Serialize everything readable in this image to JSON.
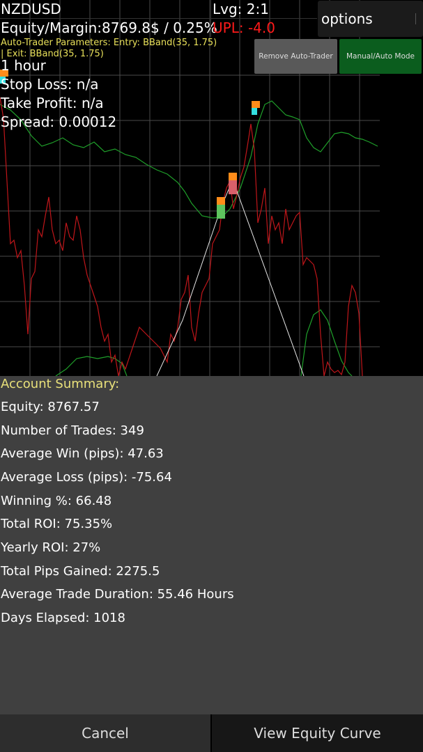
{
  "header": {
    "symbol": "NZDUSD",
    "leverage": "Lvg: 2:1",
    "equity_margin": "Equity/Margin:8769.8$ / 0.25%",
    "upl": "UPL: -4.0",
    "options_label": "options"
  },
  "auto_trader": {
    "params_line1": "Auto-Trader Parameters: Entry: BBand(35, 1.75)",
    "params_line2": "| Exit: BBand(35, 1.75)",
    "remove_label": "Remove Auto-Trader",
    "mode_label": "Manual/Auto Mode"
  },
  "trade_info": {
    "timeframe": "1 hour",
    "stop_loss": "Stop Loss: n/a",
    "take_profit": "Take Profit: n/a",
    "spread": "Spread: 0.00012"
  },
  "colors": {
    "price_line": "#c0161a",
    "band_line": "#1fa02a",
    "trade_line": "#e8e8e8",
    "grid": "#4a4a4a",
    "upl": "#ff1a1a",
    "params_text": "#e8e05a",
    "marker_orange": "#ff8c1a",
    "marker_green": "#5ec45e",
    "marker_cyan": "#33e0e0",
    "marker_red": "#d9606a"
  },
  "summary": {
    "title": "Account Summary:",
    "lines": [
      "Equity: 8767.57",
      "Number of Trades: 349",
      "Average Win (pips): 47.63",
      "Average Loss (pips): -75.64",
      "Winning %: 66.48",
      "Total ROI: 75.35%",
      "Yearly ROI: 27%",
      "Total Pips Gained: 2275.5",
      "Average Trade Duration: 55.46 Hours",
      "Days Elapsed: 1018"
    ]
  },
  "footer": {
    "cancel_label": "Cancel",
    "equity_curve_label": "View Equity Curve"
  }
}
